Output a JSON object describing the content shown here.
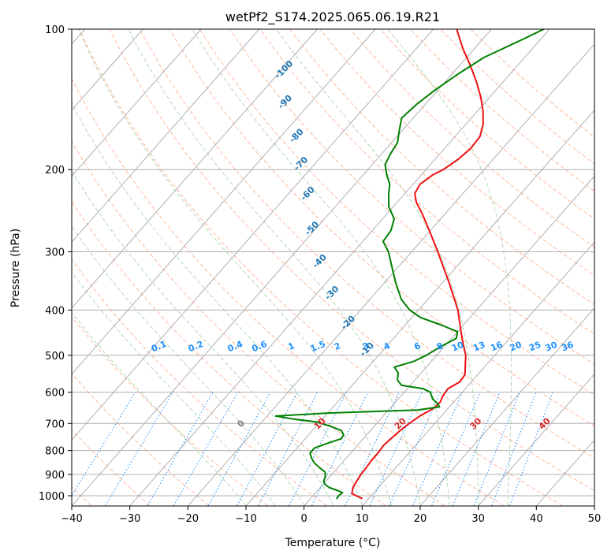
{
  "chart_data": {
    "type": "line",
    "chart_kind": "skew-t log-p diagram",
    "title": "wetPf2_S174.2025.065.06.19.R21",
    "xlabel": "Temperature (°C)",
    "ylabel": "Pressure (hPa)",
    "xlim": [
      -40,
      50
    ],
    "ylim": [
      1050,
      100
    ],
    "y_scale": "log",
    "x_ticks": [
      -40,
      -30,
      -20,
      -10,
      0,
      10,
      20,
      30,
      40,
      50
    ],
    "y_ticks": [
      100,
      200,
      300,
      400,
      500,
      600,
      700,
      800,
      900,
      1000
    ],
    "grid": true,
    "series": [
      {
        "name": "",
        "role": "temperature",
        "color": "#ee1111",
        "points": [
          [
            1013,
            8.8
          ],
          [
            990,
            6.4
          ],
          [
            960,
            5.6
          ],
          [
            930,
            5.3
          ],
          [
            900,
            5.0
          ],
          [
            870,
            4.9
          ],
          [
            840,
            4.7
          ],
          [
            810,
            4.7
          ],
          [
            780,
            4.5
          ],
          [
            750,
            4.8
          ],
          [
            720,
            5.2
          ],
          [
            700,
            5.6
          ],
          [
            675,
            6.3
          ],
          [
            650,
            7.5
          ],
          [
            630,
            7.7
          ],
          [
            610,
            7.2
          ],
          [
            590,
            7.0
          ],
          [
            570,
            8.0
          ],
          [
            550,
            7.8
          ],
          [
            530,
            6.7
          ],
          [
            500,
            5.0
          ],
          [
            470,
            2.6
          ],
          [
            440,
            0.2
          ],
          [
            400,
            -3.2
          ],
          [
            350,
            -8.8
          ],
          [
            300,
            -15.5
          ],
          [
            270,
            -20.2
          ],
          [
            250,
            -23.7
          ],
          [
            235,
            -26.7
          ],
          [
            225,
            -28.3
          ],
          [
            215,
            -28.8
          ],
          [
            205,
            -28.0
          ],
          [
            200,
            -27.0
          ],
          [
            190,
            -26.0
          ],
          [
            180,
            -25.5
          ],
          [
            170,
            -25.7
          ],
          [
            160,
            -27.0
          ],
          [
            150,
            -29.0
          ],
          [
            140,
            -31.5
          ],
          [
            130,
            -34.5
          ],
          [
            120,
            -38.0
          ],
          [
            110,
            -42.0
          ],
          [
            100,
            -46.0
          ]
        ]
      },
      {
        "name": "",
        "role": "dewpoint",
        "color": "#008000",
        "points": [
          [
            1013,
            4.5
          ],
          [
            1000,
            4.4
          ],
          [
            985,
            4.6
          ],
          [
            975,
            3.5
          ],
          [
            960,
            1.5
          ],
          [
            945,
            0.3
          ],
          [
            930,
            -0.4
          ],
          [
            910,
            -0.8
          ],
          [
            890,
            -1.5
          ],
          [
            870,
            -3.2
          ],
          [
            850,
            -4.8
          ],
          [
            830,
            -6.0
          ],
          [
            810,
            -7.0
          ],
          [
            790,
            -7.0
          ],
          [
            770,
            -5.3
          ],
          [
            755,
            -3.8
          ],
          [
            740,
            -4.0
          ],
          [
            725,
            -5.0
          ],
          [
            710,
            -7.5
          ],
          [
            695,
            -10.5
          ],
          [
            685,
            -15.0
          ],
          [
            675,
            -18.5
          ],
          [
            665,
            -10.0
          ],
          [
            655,
            5.0
          ],
          [
            645,
            8.3
          ],
          [
            635,
            7.5
          ],
          [
            620,
            5.9
          ],
          [
            600,
            4.5
          ],
          [
            590,
            2.8
          ],
          [
            580,
            -1.5
          ],
          [
            565,
            -3.0
          ],
          [
            545,
            -4.0
          ],
          [
            530,
            -5.5
          ],
          [
            515,
            -3.0
          ],
          [
            500,
            -1.8
          ],
          [
            480,
            -0.7
          ],
          [
            460,
            0.8
          ],
          [
            445,
            0.0
          ],
          [
            430,
            -4.0
          ],
          [
            415,
            -8.5
          ],
          [
            400,
            -11.5
          ],
          [
            380,
            -14.5
          ],
          [
            350,
            -18.0
          ],
          [
            320,
            -21.5
          ],
          [
            300,
            -24.0
          ],
          [
            285,
            -26.5
          ],
          [
            270,
            -26.8
          ],
          [
            255,
            -28.0
          ],
          [
            240,
            -30.8
          ],
          [
            225,
            -32.8
          ],
          [
            215,
            -34.0
          ],
          [
            205,
            -36.0
          ],
          [
            195,
            -37.8
          ],
          [
            185,
            -38.5
          ],
          [
            175,
            -39.0
          ],
          [
            165,
            -40.5
          ],
          [
            155,
            -42.0
          ],
          [
            145,
            -41.5
          ],
          [
            135,
            -40.5
          ],
          [
            125,
            -39.0
          ],
          [
            115,
            -37.0
          ],
          [
            105,
            -33.0
          ],
          [
            100,
            -31.0
          ]
        ]
      }
    ],
    "dry_adiabats": [
      -100,
      -90,
      -80,
      -70,
      -60,
      -50,
      -40,
      -30,
      -20,
      -10,
      0,
      10,
      20,
      30,
      40,
      50,
      60,
      70,
      80,
      90,
      100,
      110,
      120,
      130,
      140,
      150,
      160,
      170
    ],
    "dry_adiabat_labels": [
      {
        "text": "-100",
        "p": 122,
        "t": -69.7
      },
      {
        "text": "-90",
        "p": 143,
        "t": -64.6
      },
      {
        "text": "-80",
        "p": 169,
        "t": -57.5
      },
      {
        "text": "-70",
        "p": 194,
        "t": -52.5
      },
      {
        "text": "-60",
        "p": 225,
        "t": -46.8
      },
      {
        "text": "-50",
        "p": 267,
        "t": -40.8
      },
      {
        "text": "-40",
        "p": 314,
        "t": -34.5
      },
      {
        "text": "-30",
        "p": 367,
        "t": -27.6
      },
      {
        "text": "-20",
        "p": 425,
        "t": -20.3
      },
      {
        "text": "-10",
        "p": 485,
        "t": -13.0
      }
    ],
    "moist_adiabats": [
      -10,
      -5,
      0,
      5,
      10,
      15,
      20,
      25,
      30,
      35
    ],
    "moist_adiabat_labels": [
      {
        "text": "0",
        "t": 0,
        "color": "#808080"
      },
      {
        "text": "10",
        "t": 10,
        "color": "#d62728"
      },
      {
        "text": "20",
        "t": 20,
        "color": "#d62728"
      },
      {
        "text": "30",
        "t": 30,
        "color": "#d62728"
      },
      {
        "text": "40",
        "t": 40,
        "color": "#d62728"
      }
    ],
    "mixing_ratios": [
      "0.1",
      "0.2",
      "0.4",
      "0.6",
      "1",
      "1.5",
      "2",
      "3",
      "4",
      "6",
      "8",
      "10",
      "13",
      "16",
      "20",
      "25",
      "30",
      "36"
    ],
    "label_colors": {
      "dry_adiabat_labels": "#1f77b4",
      "mixing_ratio_labels": "#1e90ff"
    }
  }
}
